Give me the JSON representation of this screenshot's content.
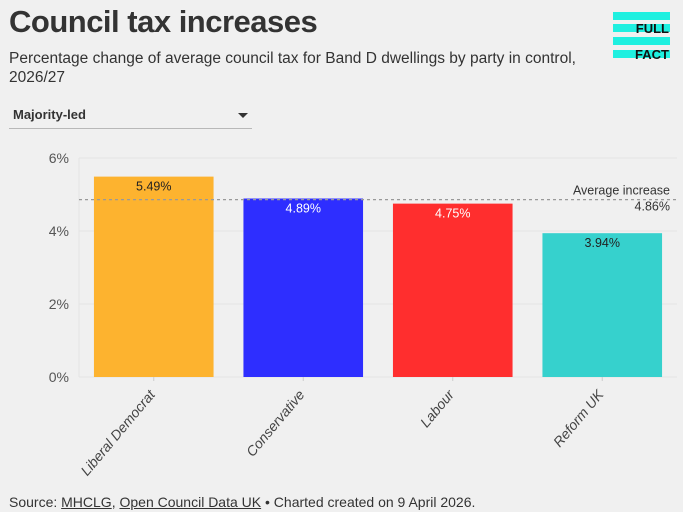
{
  "header": {
    "title": "Council tax increases",
    "subtitle": "Percentage change of average council tax for Band D dwellings by party in control, 2026/27"
  },
  "logo": {
    "line1": "FULL",
    "line2": "FACT",
    "color": "#1ff0e0"
  },
  "filter": {
    "selected": "Majority-led"
  },
  "chart_data": {
    "type": "bar",
    "title": "Council tax increases",
    "subtitle": "Percentage change of average council tax for Band D dwellings by party in control, 2026/27",
    "xlabel": "",
    "ylabel": "",
    "categories": [
      "Liberal Democrat",
      "Conservative",
      "Labour",
      "Reform UK"
    ],
    "values": [
      5.49,
      4.89,
      4.75,
      3.94
    ],
    "value_labels": [
      "5.49%",
      "4.89%",
      "4.75%",
      "3.94%"
    ],
    "colors": [
      "#fdb32f",
      "#2e2eff",
      "#ff2e2e",
      "#36d1cd"
    ],
    "label_colors": [
      "#222222",
      "#ffffff",
      "#ffffff",
      "#222222"
    ],
    "ylim": [
      0,
      6
    ],
    "yticks": [
      0,
      2,
      4,
      6
    ],
    "ytick_labels": [
      "0%",
      "2%",
      "4%",
      "6%"
    ],
    "grid": true,
    "reference_line": {
      "label": "Average increase",
      "value": 4.86,
      "value_label": "4.86%"
    }
  },
  "footer": {
    "prefix": "Source: ",
    "link1": "MHCLG",
    "sep": ", ",
    "link2": "Open Council Data UK",
    "suffix": " • Charted created on 9 April 2026."
  }
}
